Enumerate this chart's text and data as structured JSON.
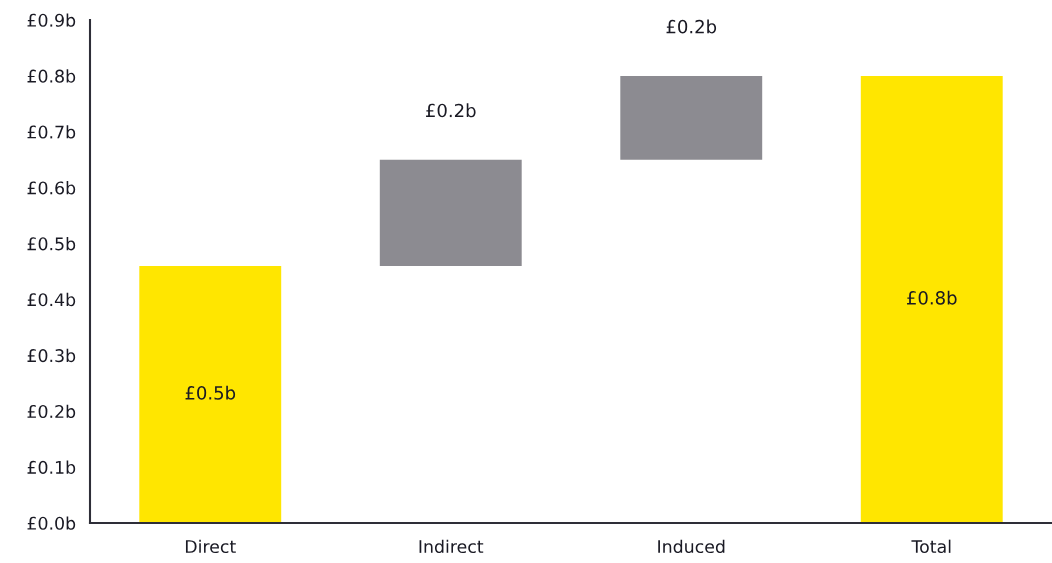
{
  "chart_data": {
    "type": "bar",
    "categories": [
      "Direct",
      "Indirect",
      "Induced",
      "Total"
    ],
    "values": [
      0.46,
      0.19,
      0.15,
      0.8
    ],
    "base": [
      0,
      0.46,
      0.65,
      0
    ],
    "colors": [
      "#ffe600",
      "#8c8b91",
      "#8c8b91",
      "#ffe600"
    ],
    "value_labels": [
      "£0.5b",
      "£0.2b",
      "£0.2b",
      "£0.8b"
    ],
    "ylim": [
      0,
      0.9
    ],
    "yticks": [
      {
        "value": 0,
        "label": "£0.0b"
      },
      {
        "value": 0.1,
        "label": "£0.1b"
      },
      {
        "value": 0.2,
        "label": "£0.2b"
      },
      {
        "value": 0.3,
        "label": "£0.3b"
      },
      {
        "value": 0.4,
        "label": "£0.4b"
      },
      {
        "value": 0.5,
        "label": "£0.5b"
      },
      {
        "value": 0.6,
        "label": "£0.6b"
      },
      {
        "value": 0.7,
        "label": "£0.7b"
      },
      {
        "value": 0.8,
        "label": "£0.8b"
      },
      {
        "value": 0.9,
        "label": "£0.9b"
      }
    ],
    "grid": false
  }
}
